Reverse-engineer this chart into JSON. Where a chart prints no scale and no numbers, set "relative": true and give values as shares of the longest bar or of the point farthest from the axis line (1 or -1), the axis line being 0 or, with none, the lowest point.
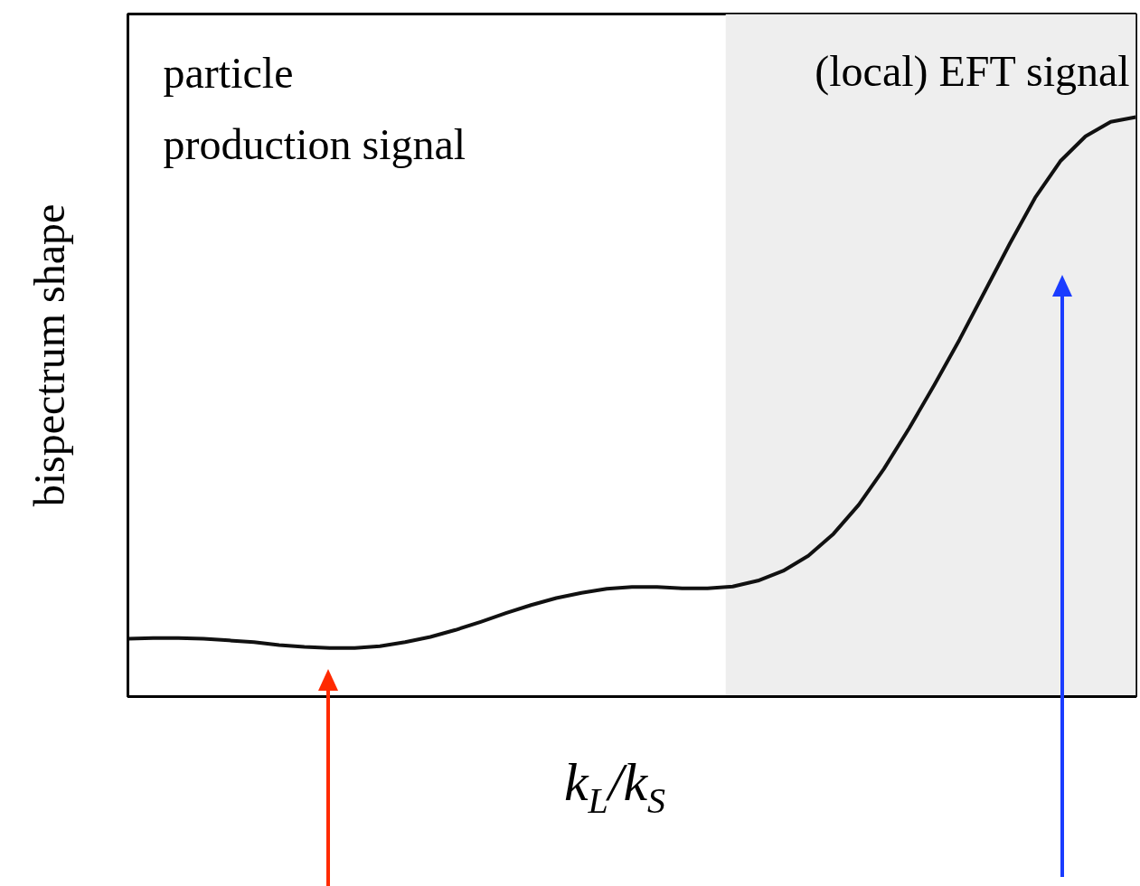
{
  "chart_data": {
    "type": "line",
    "relative": true,
    "xlabel": "k$_{L}$/k$_{S}$",
    "ylabel": "bispectrum shape",
    "categories": [
      null,
      null,
      null,
      null,
      null,
      null,
      null,
      null,
      null,
      null,
      null,
      null,
      null,
      null,
      null,
      null,
      null,
      null,
      null,
      null,
      null,
      null,
      null,
      null,
      null,
      null,
      null,
      null,
      null,
      null,
      null,
      null,
      null,
      null,
      null,
      null,
      null,
      null,
      null,
      null,
      null
    ],
    "series": [
      {
        "color": "#111111",
        "values": [
          0.1,
          0.101,
          0.101,
          0.1,
          0.097,
          0.094,
          0.089,
          0.086,
          0.084,
          0.084,
          0.087,
          0.094,
          0.103,
          0.115,
          0.129,
          0.144,
          0.158,
          0.17,
          0.179,
          0.186,
          0.189,
          0.189,
          0.187,
          0.187,
          0.19,
          0.2,
          0.217,
          0.243,
          0.281,
          0.331,
          0.393,
          0.463,
          0.538,
          0.616,
          0.699,
          0.782,
          0.861,
          0.924,
          0.967,
          0.992,
          1.0
        ]
      }
    ],
    "annotations": [
      "particle\nproduction signal",
      "(local) EFT signal"
    ],
    "grid": false,
    "marker": "none",
    "line_style": "solid"
  }
}
